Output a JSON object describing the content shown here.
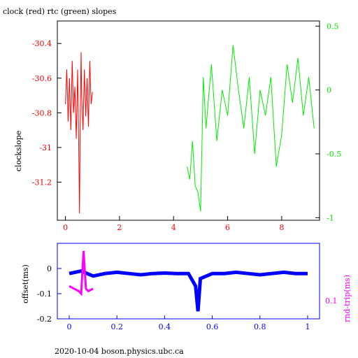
{
  "title": "clock (red) rtc (green) slopes",
  "footer": "2020-10-04 boson.physics.ubc.ca",
  "colors": {
    "red": "#ff0000",
    "green": "#00ee00",
    "blue": "#0000ff",
    "magenta": "#ff00ff",
    "black": "#000000"
  },
  "chart_data": [
    {
      "type": "line",
      "title": "clock (red) rtc (green) slopes",
      "ylabel": "clockslope",
      "xlim": [
        -0.3,
        9.4
      ],
      "ylim": [
        -31.42,
        -30.27
      ],
      "y2lim": [
        -1.02,
        0.54
      ],
      "xticks": [
        0,
        2,
        4,
        6,
        8
      ],
      "xtick_labels": [
        "0",
        "2",
        "4",
        "6",
        "8"
      ],
      "yticks": [
        -30.4,
        -30.6,
        -30.8,
        -31,
        -31.2
      ],
      "ytick_labels": [
        "-30.4",
        "-30.6",
        "-30.8",
        "-31",
        "-31.2"
      ],
      "y2ticks": [
        0.5,
        0,
        -0.5,
        -1
      ],
      "y2tick_labels": [
        "0.5",
        "0",
        "-0.5",
        "-1"
      ],
      "series": [
        {
          "color": "red",
          "axis": "left",
          "x": [
            0,
            0.05,
            0.1,
            0.15,
            0.2,
            0.25,
            0.3,
            0.35,
            0.4,
            0.45,
            0.5,
            0.52,
            0.55,
            0.58,
            0.6,
            0.65,
            0.7,
            0.75,
            0.8,
            0.85,
            0.9,
            0.95,
            1.0
          ],
          "y": [
            -30.75,
            -30.55,
            -30.85,
            -30.6,
            -30.9,
            -30.5,
            -30.8,
            -30.65,
            -30.95,
            -30.55,
            -31.1,
            -31.38,
            -30.8,
            -30.45,
            -30.7,
            -30.9,
            -30.55,
            -30.82,
            -30.6,
            -30.88,
            -30.5,
            -30.75,
            -30.68
          ]
        },
        {
          "color": "green",
          "axis": "right",
          "x": [
            4.5,
            4.6,
            4.7,
            4.8,
            4.9,
            5.0,
            5.1,
            5.2,
            5.4,
            5.6,
            5.8,
            6.0,
            6.2,
            6.4,
            6.6,
            6.8,
            7.0,
            7.2,
            7.4,
            7.6,
            7.8,
            8.0,
            8.2,
            8.4,
            8.6,
            8.8,
            9.0,
            9.2
          ],
          "y": [
            -0.6,
            -0.7,
            -0.4,
            -0.75,
            -0.8,
            -0.95,
            0.1,
            -0.3,
            0.2,
            -0.4,
            0.0,
            -0.2,
            0.35,
            0.0,
            -0.3,
            0.1,
            -0.5,
            0.0,
            -0.2,
            0.1,
            -0.6,
            -0.35,
            0.2,
            -0.1,
            0.25,
            -0.2,
            0.1,
            -0.3
          ]
        }
      ]
    },
    {
      "type": "scatter",
      "ylabel": "offset(ms)",
      "y2label": "rnd-trip(ms)",
      "xlim": [
        -0.05,
        1.05
      ],
      "ylim": [
        -0.2,
        0.1
      ],
      "xticks": [
        0,
        0.2,
        0.4,
        0.6,
        0.8,
        1
      ],
      "xtick_labels": [
        "0",
        "0.2",
        "0.4",
        "0.6",
        "0.8",
        "1"
      ],
      "yticks": [
        0,
        -0.1,
        -0.2
      ],
      "ytick_labels": [
        "0",
        "-0.1",
        "-0.2"
      ],
      "y2tick_labels": [
        "0.1"
      ],
      "series": [
        {
          "color": "blue",
          "description_points": [
            [
              0.0,
              -0.02
            ],
            [
              0.05,
              -0.01
            ],
            [
              0.1,
              -0.03
            ],
            [
              0.15,
              -0.02
            ],
            [
              0.2,
              -0.015
            ],
            [
              0.25,
              -0.02
            ],
            [
              0.3,
              -0.025
            ],
            [
              0.35,
              -0.02
            ],
            [
              0.4,
              -0.018
            ],
            [
              0.45,
              -0.02
            ],
            [
              0.5,
              -0.02
            ],
            [
              0.53,
              -0.07
            ],
            [
              0.54,
              -0.17
            ],
            [
              0.55,
              -0.04
            ],
            [
              0.6,
              -0.02
            ],
            [
              0.65,
              -0.02
            ],
            [
              0.7,
              -0.015
            ],
            [
              0.75,
              -0.02
            ],
            [
              0.8,
              -0.025
            ],
            [
              0.85,
              -0.02
            ],
            [
              0.9,
              -0.015
            ],
            [
              0.95,
              -0.02
            ],
            [
              1.0,
              -0.02
            ]
          ]
        },
        {
          "color": "magenta",
          "description_points": [
            [
              0.0,
              -0.07
            ],
            [
              0.02,
              -0.08
            ],
            [
              0.04,
              -0.09
            ],
            [
              0.05,
              -0.1
            ],
            [
              0.06,
              0.07
            ],
            [
              0.07,
              -0.08
            ],
            [
              0.08,
              -0.09
            ],
            [
              0.1,
              -0.08
            ]
          ]
        }
      ]
    }
  ]
}
